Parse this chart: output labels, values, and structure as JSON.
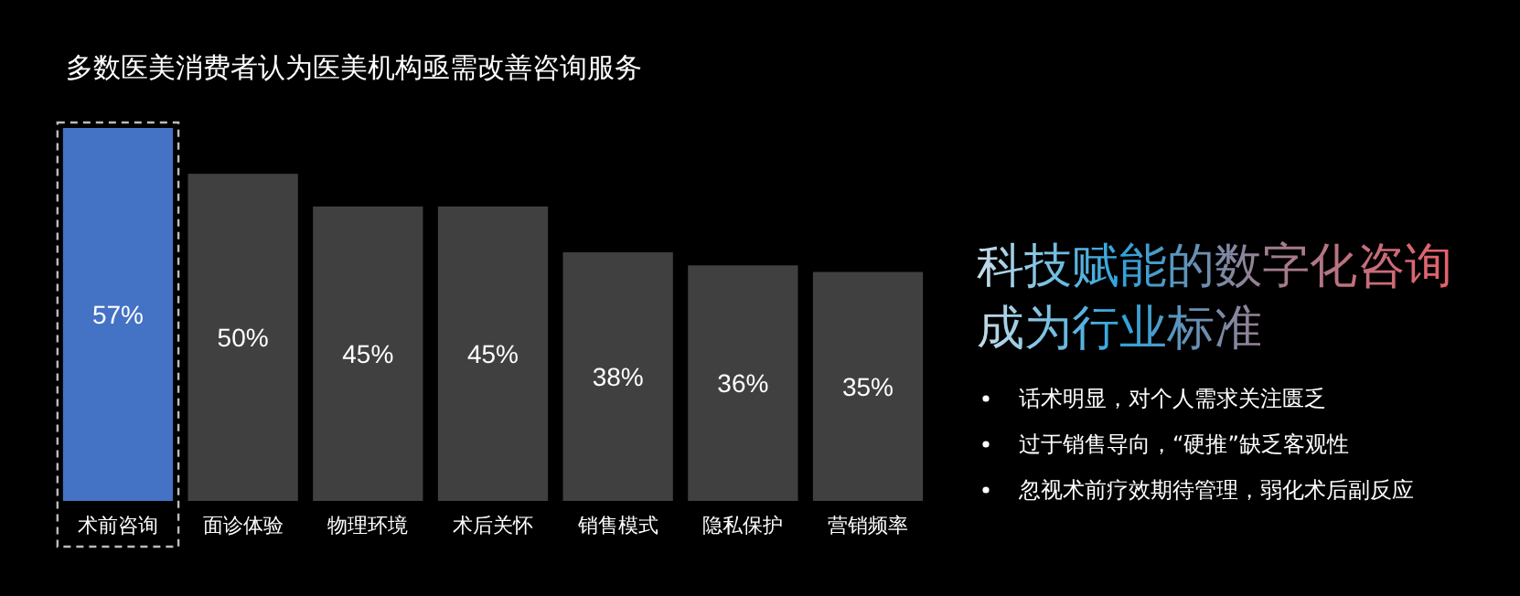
{
  "chart_data": {
    "type": "bar",
    "title": "多数医美消费者认为医美机构亟需改善咨询服务",
    "categories": [
      "术前咨询",
      "面诊体验",
      "物理环境",
      "术后关怀",
      "销售模式",
      "隐私保护",
      "营销频率"
    ],
    "values": [
      57,
      50,
      45,
      45,
      38,
      36,
      35
    ],
    "colors": [
      "#4472c4",
      "#404040",
      "#404040",
      "#404040",
      "#404040",
      "#404040",
      "#404040"
    ],
    "value_labels": [
      "57%",
      "50%",
      "45%",
      "45%",
      "38%",
      "36%",
      "35%"
    ],
    "annotations": [
      "科技赋能的数字化咨询成为行业标准",
      "话术明显，对个人需求关注匮乏",
      "过于销售导向，“硬推”缺乏客观性",
      "忽视术前疗效期待管理，弱化术后副反应"
    ]
  }
}
